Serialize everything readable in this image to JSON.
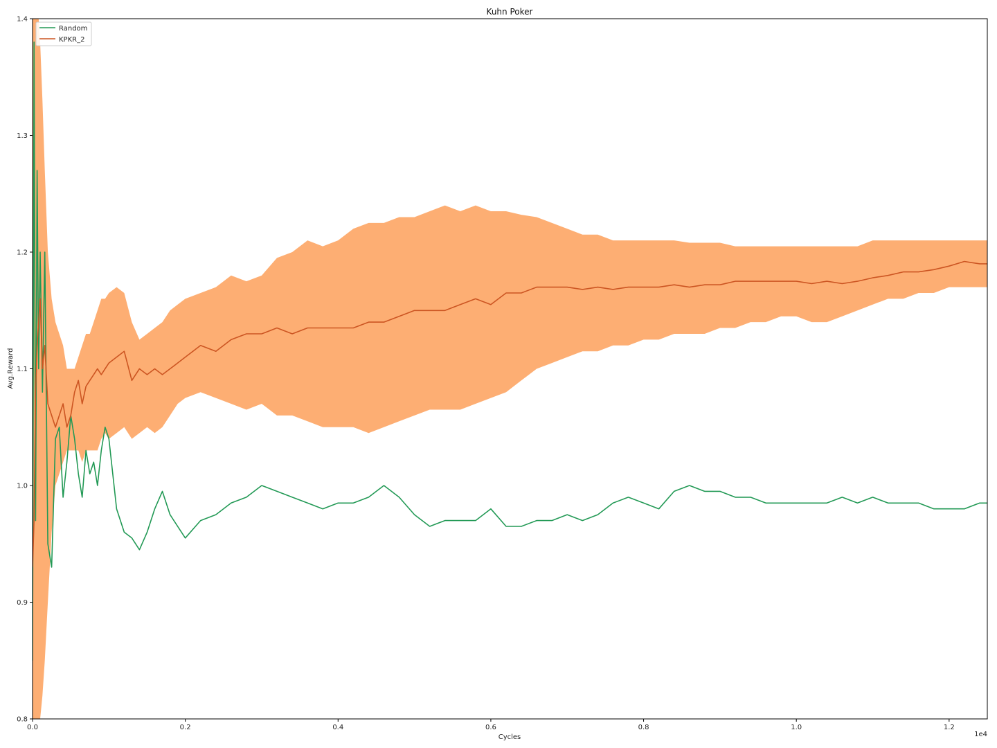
{
  "chart_data": {
    "type": "line",
    "title": "Kuhn Poker",
    "xlabel": "Cycles",
    "ylabel": "Avg.Reward",
    "x_offset_text": "1e4",
    "xlim": [
      0,
      12500
    ],
    "ylim": [
      0.8,
      1.4
    ],
    "grid": false,
    "legend_position": "top-left",
    "x_ticks": [
      0,
      2000,
      4000,
      6000,
      8000,
      10000,
      12000
    ],
    "x_tick_labels": [
      "0.0",
      "0.2",
      "0.4",
      "0.6",
      "0.8",
      "1.0",
      "1.2"
    ],
    "y_ticks": [
      0.8,
      0.9,
      1.0,
      1.1,
      1.2,
      1.3,
      1.4
    ],
    "y_tick_labels": [
      "0.8",
      "0.9",
      "1.0",
      "1.1",
      "1.2",
      "1.3",
      "1.4"
    ],
    "series": [
      {
        "name": "Random",
        "color": "#229955",
        "x": [
          0,
          20,
          40,
          60,
          80,
          100,
          130,
          160,
          200,
          250,
          300,
          350,
          400,
          450,
          500,
          550,
          600,
          650,
          700,
          750,
          800,
          850,
          900,
          950,
          1000,
          1100,
          1200,
          1300,
          1400,
          1500,
          1600,
          1700,
          1800,
          1900,
          2000,
          2200,
          2400,
          2600,
          2800,
          3000,
          3200,
          3400,
          3600,
          3800,
          4000,
          4200,
          4400,
          4600,
          4800,
          5000,
          5200,
          5400,
          5600,
          5800,
          6000,
          6200,
          6400,
          6600,
          6800,
          7000,
          7200,
          7400,
          7600,
          7800,
          8000,
          8200,
          8400,
          8600,
          8800,
          9000,
          9200,
          9400,
          9600,
          9800,
          10000,
          10200,
          10400,
          10600,
          10800,
          11000,
          11200,
          11400,
          11600,
          11800,
          12000,
          12200,
          12400,
          12500
        ],
        "y": [
          0.85,
          1.38,
          0.97,
          1.27,
          1.1,
          1.2,
          1.08,
          1.2,
          0.95,
          0.93,
          1.04,
          1.05,
          0.99,
          1.02,
          1.06,
          1.04,
          1.01,
          0.99,
          1.03,
          1.01,
          1.02,
          1.0,
          1.03,
          1.05,
          1.04,
          0.98,
          0.96,
          0.955,
          0.945,
          0.96,
          0.98,
          0.995,
          0.975,
          0.965,
          0.955,
          0.97,
          0.975,
          0.985,
          0.99,
          1.0,
          0.995,
          0.99,
          0.985,
          0.98,
          0.985,
          0.985,
          0.99,
          1.0,
          0.99,
          0.975,
          0.965,
          0.97,
          0.97,
          0.97,
          0.98,
          0.965,
          0.965,
          0.97,
          0.97,
          0.975,
          0.97,
          0.975,
          0.985,
          0.99,
          0.985,
          0.98,
          0.995,
          1.0,
          0.995,
          0.995,
          0.99,
          0.99,
          0.985,
          0.985,
          0.985,
          0.985,
          0.985,
          0.99,
          0.985,
          0.99,
          0.985,
          0.985,
          0.985,
          0.98,
          0.98,
          0.98,
          0.985,
          0.985
        ]
      },
      {
        "name": "KPKR_2",
        "color": "#cc5522",
        "band_color": "#fdaa6b",
        "x": [
          0,
          20,
          40,
          60,
          80,
          100,
          130,
          160,
          200,
          250,
          300,
          350,
          400,
          450,
          500,
          550,
          600,
          650,
          700,
          750,
          800,
          850,
          900,
          950,
          1000,
          1100,
          1200,
          1300,
          1400,
          1500,
          1600,
          1700,
          1800,
          1900,
          2000,
          2200,
          2400,
          2600,
          2800,
          3000,
          3200,
          3400,
          3600,
          3800,
          4000,
          4200,
          4400,
          4600,
          4800,
          5000,
          5200,
          5400,
          5600,
          5800,
          6000,
          6200,
          6400,
          6600,
          6800,
          7000,
          7200,
          7400,
          7600,
          7800,
          8000,
          8200,
          8400,
          8600,
          8800,
          9000,
          9200,
          9400,
          9600,
          9800,
          10000,
          10200,
          10400,
          10600,
          10800,
          11000,
          11200,
          11400,
          11600,
          11800,
          12000,
          12200,
          12400,
          12500
        ],
        "y": [
          0.93,
          0.97,
          1.08,
          1.12,
          1.14,
          1.16,
          1.1,
          1.12,
          1.07,
          1.06,
          1.05,
          1.06,
          1.07,
          1.05,
          1.06,
          1.08,
          1.09,
          1.07,
          1.085,
          1.09,
          1.095,
          1.1,
          1.095,
          1.1,
          1.105,
          1.11,
          1.115,
          1.09,
          1.1,
          1.095,
          1.1,
          1.095,
          1.1,
          1.105,
          1.11,
          1.12,
          1.115,
          1.125,
          1.13,
          1.13,
          1.135,
          1.13,
          1.135,
          1.135,
          1.135,
          1.135,
          1.14,
          1.14,
          1.145,
          1.15,
          1.15,
          1.15,
          1.155,
          1.16,
          1.155,
          1.165,
          1.165,
          1.17,
          1.17,
          1.17,
          1.168,
          1.17,
          1.168,
          1.17,
          1.17,
          1.17,
          1.172,
          1.17,
          1.172,
          1.172,
          1.175,
          1.175,
          1.175,
          1.175,
          1.175,
          1.173,
          1.175,
          1.173,
          1.175,
          1.178,
          1.18,
          1.183,
          1.183,
          1.185,
          1.188,
          1.192,
          1.19,
          1.19
        ],
        "upper": [
          1.4,
          1.4,
          1.4,
          1.4,
          1.4,
          1.38,
          1.33,
          1.27,
          1.2,
          1.16,
          1.14,
          1.13,
          1.12,
          1.1,
          1.1,
          1.1,
          1.11,
          1.12,
          1.13,
          1.13,
          1.14,
          1.15,
          1.16,
          1.16,
          1.165,
          1.17,
          1.165,
          1.14,
          1.125,
          1.13,
          1.135,
          1.14,
          1.15,
          1.155,
          1.16,
          1.165,
          1.17,
          1.18,
          1.175,
          1.18,
          1.195,
          1.2,
          1.21,
          1.205,
          1.21,
          1.22,
          1.225,
          1.225,
          1.23,
          1.23,
          1.235,
          1.24,
          1.235,
          1.24,
          1.235,
          1.235,
          1.232,
          1.23,
          1.225,
          1.22,
          1.215,
          1.215,
          1.21,
          1.21,
          1.21,
          1.21,
          1.21,
          1.208,
          1.208,
          1.208,
          1.205,
          1.205,
          1.205,
          1.205,
          1.205,
          1.205,
          1.205,
          1.205,
          1.205,
          1.21,
          1.21,
          1.21,
          1.21,
          1.21,
          1.21,
          1.21,
          1.21,
          1.21
        ],
        "lower": [
          0.8,
          0.8,
          0.8,
          0.8,
          0.8,
          0.8,
          0.82,
          0.85,
          0.9,
          0.96,
          1.0,
          1.01,
          1.02,
          1.03,
          1.03,
          1.03,
          1.03,
          1.02,
          1.03,
          1.03,
          1.03,
          1.03,
          1.04,
          1.045,
          1.04,
          1.045,
          1.05,
          1.04,
          1.045,
          1.05,
          1.045,
          1.05,
          1.06,
          1.07,
          1.075,
          1.08,
          1.075,
          1.07,
          1.065,
          1.07,
          1.06,
          1.06,
          1.055,
          1.05,
          1.05,
          1.05,
          1.045,
          1.05,
          1.055,
          1.06,
          1.065,
          1.065,
          1.065,
          1.07,
          1.075,
          1.08,
          1.09,
          1.1,
          1.105,
          1.11,
          1.115,
          1.115,
          1.12,
          1.12,
          1.125,
          1.125,
          1.13,
          1.13,
          1.13,
          1.135,
          1.135,
          1.14,
          1.14,
          1.145,
          1.145,
          1.14,
          1.14,
          1.145,
          1.15,
          1.155,
          1.16,
          1.16,
          1.165,
          1.165,
          1.17,
          1.17,
          1.17,
          1.17
        ]
      }
    ]
  }
}
